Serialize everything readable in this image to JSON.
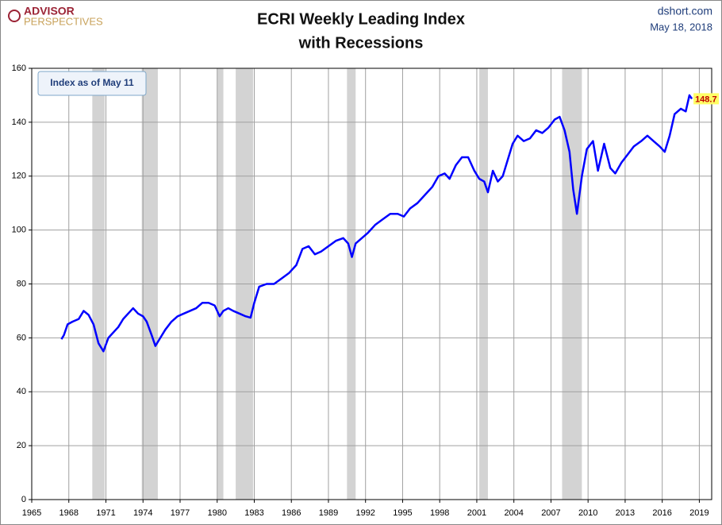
{
  "chart_data": {
    "type": "line",
    "logo": [
      "ADVISOR",
      "PERSPECTIVES"
    ],
    "title": "ECRI Weekly Leading Index",
    "subtitle": "with Recessions",
    "source": "dshort.com",
    "date": "May 18, 2018",
    "annotation": "Index as of May 11",
    "xlim": [
      1965,
      2020
    ],
    "xticks": [
      1965,
      1968,
      1971,
      1974,
      1977,
      1980,
      1983,
      1986,
      1989,
      1992,
      1995,
      1998,
      2001,
      2004,
      2007,
      2010,
      2013,
      2016,
      2019
    ],
    "ylim": [
      0,
      160
    ],
    "yticks": [
      0,
      20,
      40,
      60,
      80,
      100,
      120,
      140,
      160
    ],
    "grid": true,
    "recession_color": "#d3d3d3",
    "recessions": [
      [
        1969.9,
        1970.9
      ],
      [
        1973.9,
        1975.2
      ],
      [
        1980.0,
        1980.5
      ],
      [
        1981.5,
        1982.9
      ],
      [
        1990.5,
        1991.2
      ],
      [
        2001.2,
        2001.9
      ],
      [
        2007.9,
        2009.5
      ]
    ],
    "x": [
      1967.4,
      1967.6,
      1967.9,
      1968.3,
      1968.8,
      1969.2,
      1969.6,
      1970.0,
      1970.4,
      1970.8,
      1971.2,
      1971.6,
      1972.0,
      1972.4,
      1972.8,
      1973.2,
      1973.6,
      1974.0,
      1974.3,
      1974.7,
      1975.0,
      1975.4,
      1975.8,
      1976.3,
      1976.8,
      1977.3,
      1977.8,
      1978.3,
      1978.8,
      1979.3,
      1979.8,
      1980.2,
      1980.5,
      1980.9,
      1981.3,
      1981.8,
      1982.3,
      1982.7,
      1983.0,
      1983.4,
      1984.0,
      1984.6,
      1985.2,
      1985.8,
      1986.4,
      1986.9,
      1987.4,
      1987.9,
      1988.4,
      1989.0,
      1989.6,
      1990.2,
      1990.6,
      1990.9,
      1991.2,
      1991.7,
      1992.2,
      1992.8,
      1993.4,
      1994.0,
      1994.6,
      1995.1,
      1995.6,
      1996.2,
      1996.8,
      1997.4,
      1997.9,
      1998.4,
      1998.8,
      1999.3,
      1999.8,
      2000.3,
      2000.8,
      2001.2,
      2001.6,
      2001.9,
      2002.3,
      2002.7,
      2003.1,
      2003.5,
      2003.9,
      2004.3,
      2004.8,
      2005.3,
      2005.8,
      2006.3,
      2006.8,
      2007.3,
      2007.7,
      2008.1,
      2008.5,
      2008.8,
      2009.1,
      2009.5,
      2009.9,
      2010.4,
      2010.8,
      2011.3,
      2011.8,
      2012.2,
      2012.7,
      2013.2,
      2013.7,
      2014.3,
      2014.8,
      2015.3,
      2015.8,
      2016.2,
      2016.6,
      2017.0,
      2017.5,
      2017.9,
      2018.2,
      2018.4
    ],
    "series": [
      {
        "color": "#0000ff",
        "values": [
          59.5,
          61,
          65,
          66,
          67,
          70,
          68.5,
          65,
          58,
          55,
          60,
          62,
          64,
          67,
          69,
          71,
          69,
          68,
          66,
          61,
          57,
          60,
          63,
          66,
          68,
          69,
          70,
          71,
          73,
          73,
          72,
          68,
          70,
          71,
          70,
          69,
          68,
          67.5,
          73,
          79,
          80,
          80,
          82,
          84,
          87,
          93,
          94,
          91,
          92,
          94,
          96,
          97,
          95,
          90,
          95,
          97,
          99,
          102,
          104,
          106,
          106,
          105,
          108,
          110,
          113,
          116,
          120,
          121,
          119,
          124,
          127,
          127,
          122,
          119,
          118,
          114,
          122,
          118,
          120,
          126,
          132,
          135,
          133,
          134,
          137,
          136,
          138,
          141,
          142,
          137,
          129,
          115,
          106,
          120,
          130,
          133,
          122,
          132,
          123,
          121,
          125,
          128,
          131,
          133,
          135,
          133,
          131,
          129,
          135,
          143,
          145,
          144,
          150,
          148.7
        ]
      }
    ]
  }
}
